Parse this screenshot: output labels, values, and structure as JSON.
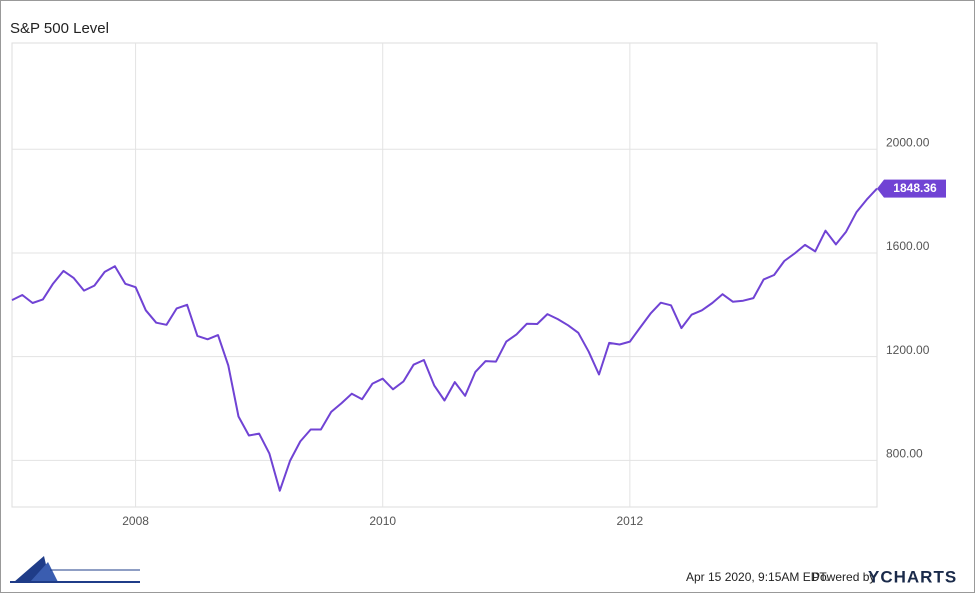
{
  "chart_data": {
    "type": "line",
    "title": "S&P 500 Level",
    "x": [
      2007.0,
      2007.083,
      2007.167,
      2007.25,
      2007.333,
      2007.417,
      2007.5,
      2007.583,
      2007.667,
      2007.75,
      2007.833,
      2007.917,
      2008.0,
      2008.083,
      2008.167,
      2008.25,
      2008.333,
      2008.417,
      2008.5,
      2008.583,
      2008.667,
      2008.75,
      2008.833,
      2008.917,
      2009.0,
      2009.083,
      2009.167,
      2009.25,
      2009.333,
      2009.417,
      2009.5,
      2009.583,
      2009.667,
      2009.75,
      2009.833,
      2009.917,
      2010.0,
      2010.083,
      2010.167,
      2010.25,
      2010.333,
      2010.417,
      2010.5,
      2010.583,
      2010.667,
      2010.75,
      2010.833,
      2010.917,
      2011.0,
      2011.083,
      2011.167,
      2011.25,
      2011.333,
      2011.417,
      2011.5,
      2011.583,
      2011.667,
      2011.75,
      2011.833,
      2011.917,
      2012.0,
      2012.083,
      2012.167,
      2012.25,
      2012.333,
      2012.417,
      2012.5,
      2012.583,
      2012.667,
      2012.75,
      2012.833,
      2012.917,
      2013.0,
      2013.083,
      2013.167,
      2013.25,
      2013.333,
      2013.417,
      2013.5,
      2013.583,
      2013.667,
      2013.75,
      2013.833,
      2013.917,
      2014.0
    ],
    "values": [
      1418,
      1438,
      1407,
      1421,
      1482,
      1531,
      1503,
      1455,
      1474,
      1527,
      1549,
      1481,
      1468,
      1379,
      1331,
      1323,
      1386,
      1400,
      1280,
      1267,
      1283,
      1166,
      969,
      896,
      903,
      826,
      683,
      798,
      873,
      919,
      919,
      987,
      1021,
      1057,
      1036,
      1096,
      1115,
      1074,
      1104,
      1169,
      1187,
      1089,
      1031,
      1102,
      1049,
      1141,
      1183,
      1181,
      1258,
      1286,
      1327,
      1326,
      1364,
      1345,
      1321,
      1292,
      1219,
      1131,
      1253,
      1247,
      1258,
      1312,
      1366,
      1408,
      1398,
      1310,
      1362,
      1379,
      1407,
      1441,
      1412,
      1416,
      1426,
      1498,
      1515,
      1569,
      1598,
      1631,
      1606,
      1686,
      1633,
      1682,
      1757,
      1806,
      1848.36
    ],
    "color": "#7043d4",
    "xlim": [
      2007,
      2014
    ],
    "xticks": [
      2008,
      2010,
      2012
    ],
    "ylim": [
      620,
      2410
    ],
    "yticks": [
      {
        "value": 800,
        "label": "800.00"
      },
      {
        "value": 1200,
        "label": "1200.00"
      },
      {
        "value": 1600,
        "label": "1600.00"
      },
      {
        "value": 2000,
        "label": "2000.00"
      }
    ],
    "grid": true,
    "footer": "Apr 15 2020, 9:15AM EDT.",
    "powered_by": "Powered by",
    "brand": "YCHARTS"
  }
}
